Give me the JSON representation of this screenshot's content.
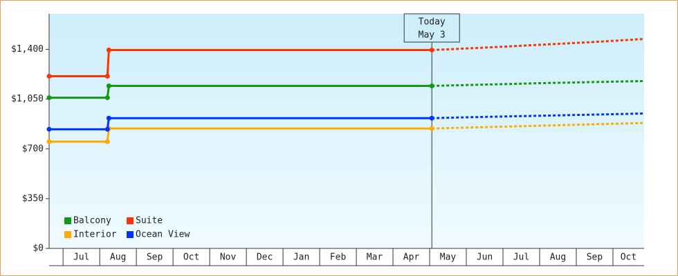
{
  "chart_data": {
    "type": "line",
    "categories": [
      "Jul",
      "Aug",
      "Sep",
      "Oct",
      "Nov",
      "Dec",
      "Jan",
      "Feb",
      "Mar",
      "Apr",
      "May",
      "Jun",
      "Jul",
      "Aug",
      "Sep",
      "Oct"
    ],
    "xlim": [
      -0.38,
      15.85
    ],
    "ylim": [
      0,
      1650
    ],
    "yticks": [
      {
        "value": 0,
        "label": "$0"
      },
      {
        "value": 350,
        "label": "$350"
      },
      {
        "value": 700,
        "label": "$700"
      },
      {
        "value": 1050,
        "label": "$1,050"
      },
      {
        "value": 1400,
        "label": "$1,400"
      }
    ],
    "legend": "lower left",
    "annotation": {
      "x": 10.06,
      "lines": [
        "Today",
        "May 3"
      ]
    },
    "series": [
      {
        "name": "Balcony",
        "color": "#119911",
        "x": [
          -0.38,
          1.21,
          1.25,
          10.06
        ],
        "values": [
          1060,
          1060,
          1143,
          1143
        ],
        "forecast_x": [
          10.06,
          11.5,
          13,
          14.5,
          15.85
        ],
        "forecast_values": [
          1143,
          1152,
          1162,
          1170,
          1177
        ]
      },
      {
        "name": "Suite",
        "color": "#ff3300",
        "x": [
          -0.38,
          1.21,
          1.25,
          10.06
        ],
        "values": [
          1211,
          1211,
          1395,
          1395
        ],
        "forecast_x": [
          10.06,
          11.5,
          13,
          14.5,
          15.85
        ],
        "forecast_values": [
          1395,
          1412,
          1432,
          1452,
          1473
        ]
      },
      {
        "name": "Interior",
        "color": "#ffaa00",
        "x": [
          -0.38,
          1.21,
          1.25,
          10.06
        ],
        "values": [
          751,
          751,
          843,
          843
        ],
        "forecast_x": [
          10.06,
          11.5,
          13,
          14.5,
          15.85
        ],
        "forecast_values": [
          843,
          853,
          863,
          873,
          882
        ]
      },
      {
        "name": "Ocean View",
        "color": "#0033ff",
        "x": [
          -0.38,
          1.21,
          1.25,
          10.06
        ],
        "values": [
          838,
          838,
          916,
          916
        ],
        "forecast_x": [
          10.06,
          11.5,
          13,
          14.5,
          15.85
        ],
        "forecast_values": [
          916,
          925,
          933,
          941,
          949
        ]
      }
    ]
  }
}
